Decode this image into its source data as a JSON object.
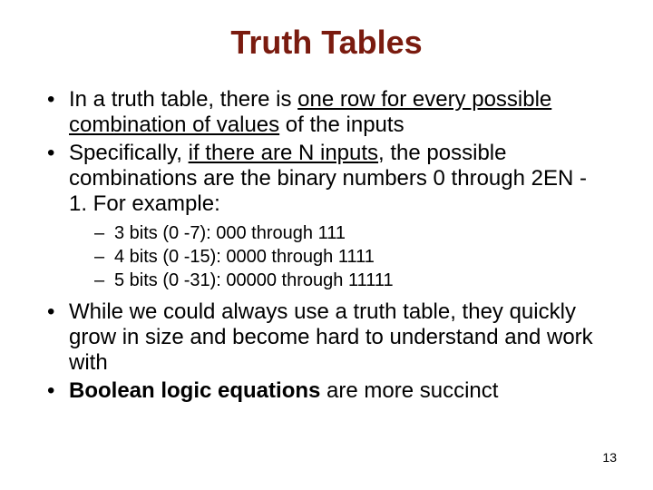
{
  "title": {
    "text": "Truth Tables",
    "color": "#7a1b0f",
    "fontsize": 36
  },
  "body": {
    "color": "#000000",
    "bullet_fontsize": 24,
    "sub_fontsize": 20
  },
  "bullets": [
    {
      "pre": "In a truth table, there is ",
      "u": "one row for every possible combination of values",
      "post": " of the inputs"
    },
    {
      "pre": "Specifically, ",
      "u": "if there are N inputs",
      "post": ", the possible combinations are the binary numbers 0 through 2EN - 1.  For example:"
    }
  ],
  "sub_bullets": [
    "3 bits (0 -7):    000 through 111",
    "4 bits (0 -15):  0000 through 1111",
    "5 bits (0 -31):  00000 through 11111"
  ],
  "bullets2": [
    {
      "text": "While we could always use a truth table, they quickly grow in size and become hard to understand and work with"
    },
    {
      "bold": "Boolean logic equations",
      "post": " are more succinct"
    }
  ],
  "pagenum": {
    "text": "13",
    "fontsize": 14,
    "color": "#000000"
  }
}
